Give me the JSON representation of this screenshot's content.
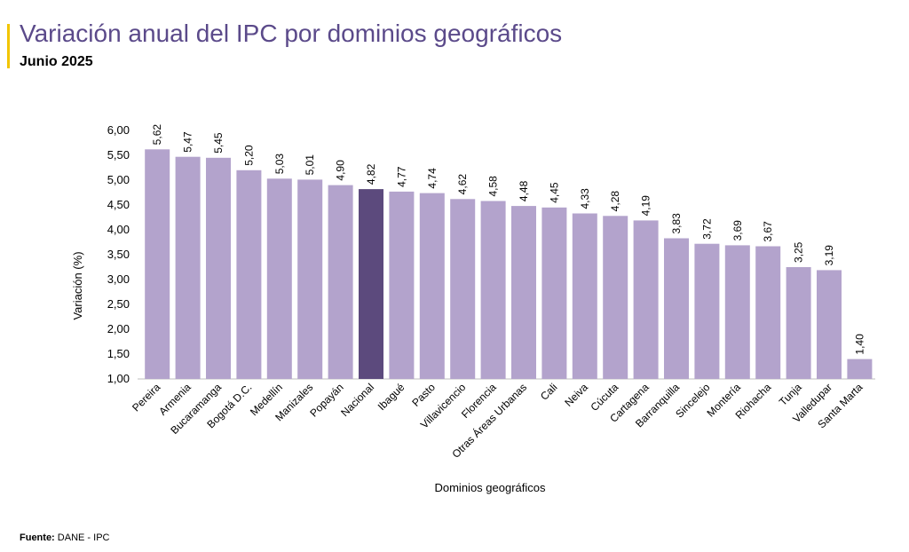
{
  "header": {
    "title": "Variación anual del IPC por dominios geográficos",
    "subtitle": "Junio 2025"
  },
  "footer": {
    "source_label": "Fuente:",
    "source_value": "DANE - IPC"
  },
  "colors": {
    "bar": "#b3a3cc",
    "highlight_bar": "#5c4a7d",
    "title": "#5b4a8a",
    "accent": "#f2c500"
  },
  "chart_data": {
    "type": "bar",
    "title": "Variación anual del IPC por dominios geográficos",
    "subtitle": "Junio 2025",
    "xlabel": "Dominios geográficos",
    "ylabel": "Variación (%)",
    "ylim": [
      1.0,
      6.0
    ],
    "yticks": [
      "1,00",
      "1,50",
      "2,00",
      "2,50",
      "3,00",
      "3,50",
      "4,00",
      "4,50",
      "5,00",
      "5,50",
      "6,00"
    ],
    "grid": false,
    "highlight": "Nacional",
    "categories": [
      "Pereira",
      "Armenia",
      "Bucaramanga",
      "Bogotá D.C.",
      "Medellín",
      "Manizales",
      "Popayán",
      "Nacional",
      "Ibagué",
      "Pasto",
      "Villavicencio",
      "Florencia",
      "Otras Áreas Urbanas",
      "Cali",
      "Neiva",
      "Cúcuta",
      "Cartagena",
      "Barranquilla",
      "Sincelejo",
      "Montería",
      "Riohacha",
      "Tunja",
      "Valledupar",
      "Santa Marta"
    ],
    "values": [
      5.62,
      5.47,
      5.45,
      5.2,
      5.03,
      5.01,
      4.9,
      4.82,
      4.77,
      4.74,
      4.62,
      4.58,
      4.48,
      4.45,
      4.33,
      4.28,
      4.19,
      3.83,
      3.72,
      3.69,
      3.67,
      3.25,
      3.19,
      1.4
    ],
    "value_labels": [
      "5,62",
      "5,47",
      "5,45",
      "5,20",
      "5,03",
      "5,01",
      "4,90",
      "4,82",
      "4,77",
      "4,74",
      "4,62",
      "4,58",
      "4,48",
      "4,45",
      "4,33",
      "4,28",
      "4,19",
      "3,83",
      "3,72",
      "3,69",
      "3,67",
      "3,25",
      "3,19",
      "1,40"
    ]
  }
}
